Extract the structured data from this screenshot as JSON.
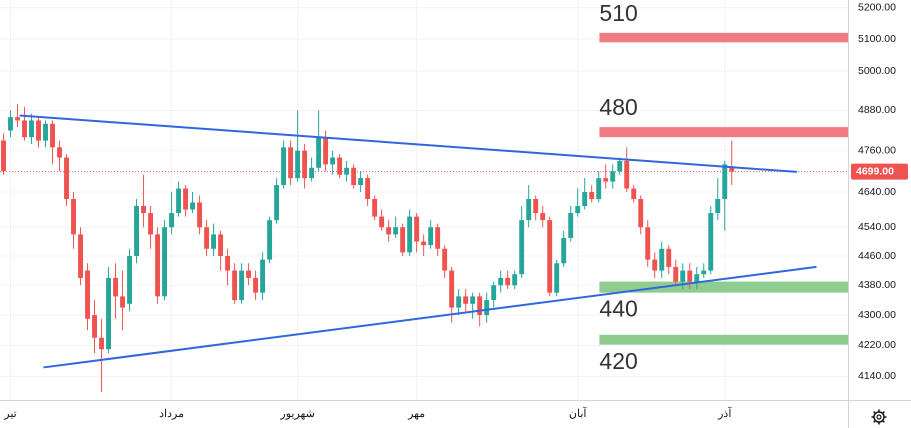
{
  "chart_data": {
    "type": "candlestick",
    "log": true,
    "grid": true,
    "up_color": "#26a69a",
    "down_color": "#ef5350",
    "xlim": [
      -0.5,
      120.6
    ],
    "ylim": [
      4080,
      5225
    ],
    "yticks": [
      {
        "value": 5200,
        "label": "5200.00"
      },
      {
        "value": 5100,
        "label": "5100.00"
      },
      {
        "value": 5000,
        "label": "5000.00"
      },
      {
        "value": 4880,
        "label": "4880.00"
      },
      {
        "value": 4760,
        "label": "4760.00"
      },
      {
        "value": 4640,
        "label": "4640.00"
      },
      {
        "value": 4540,
        "label": "4540.00"
      },
      {
        "value": 4460,
        "label": "4460.00"
      },
      {
        "value": 4380,
        "label": "4380.00"
      },
      {
        "value": 4300,
        "label": "4300.00"
      },
      {
        "value": 4220,
        "label": "4220.00"
      },
      {
        "value": 4140,
        "label": "4140.00"
      }
    ],
    "categories": [
      null,
      "تیر",
      null,
      null,
      null,
      null,
      null,
      null,
      null,
      null,
      null,
      null,
      null,
      null,
      null,
      null,
      null,
      null,
      null,
      null,
      null,
      null,
      null,
      null,
      "مرداد",
      null,
      null,
      null,
      null,
      null,
      null,
      null,
      null,
      null,
      null,
      null,
      null,
      null,
      null,
      null,
      null,
      null,
      "شهریور",
      null,
      null,
      null,
      null,
      null,
      null,
      null,
      null,
      null,
      null,
      null,
      null,
      null,
      null,
      null,
      null,
      "مهر",
      null,
      null,
      null,
      null,
      null,
      null,
      null,
      null,
      null,
      null,
      null,
      null,
      null,
      null,
      null,
      null,
      null,
      null,
      null,
      null,
      null,
      null,
      "آبان",
      null,
      null,
      null,
      null,
      null,
      null,
      null,
      null,
      null,
      null,
      null,
      null,
      null,
      null,
      null,
      null,
      null,
      null,
      null,
      null,
      "آذر",
      null
    ],
    "open": [
      4790,
      4820,
      4860,
      4850,
      4800,
      4850,
      4790,
      4840,
      4770,
      4740,
      4620,
      4520,
      4420,
      4300,
      4240,
      4210,
      4400,
      4350,
      4330,
      4460,
      4600,
      4580,
      4520,
      4350,
      4540,
      4580,
      4650,
      4590,
      4610,
      4540,
      4480,
      4520,
      4460,
      4420,
      4340,
      4420,
      4400,
      4360,
      4450,
      4560,
      4660,
      4770,
      4680,
      4760,
      4680,
      4710,
      4800,
      4720,
      4740,
      4690,
      4710,
      4660,
      4680,
      4620,
      4570,
      4540,
      4520,
      4540,
      4470,
      4570,
      4500,
      4490,
      4540,
      4480,
      4420,
      4320,
      4350,
      4330,
      4350,
      4300,
      4340,
      4380,
      4400,
      4380,
      4410,
      4560,
      4620,
      4580,
      4560,
      4360,
      4440,
      4510,
      4580,
      4600,
      4640,
      4620,
      4680,
      4670,
      4700,
      4730,
      4650,
      4620,
      4540,
      4450,
      4420,
      4480,
      4430,
      4390,
      4420,
      4390,
      4410,
      4420,
      4580,
      4620,
      4710
    ],
    "high": [
      4810,
      4880,
      4900,
      4890,
      4870,
      4860,
      4850,
      4850,
      4790,
      4750,
      4640,
      4540,
      4440,
      4340,
      4290,
      4430,
      4440,
      4420,
      4480,
      4620,
      4690,
      4600,
      4540,
      4560,
      4640,
      4670,
      4660,
      4640,
      4630,
      4560,
      4550,
      4530,
      4480,
      4440,
      4440,
      4440,
      4420,
      4470,
      4570,
      4680,
      4790,
      4790,
      4880,
      4780,
      4740,
      4880,
      4820,
      4760,
      4750,
      4730,
      4720,
      4700,
      4690,
      4630,
      4590,
      4560,
      4570,
      4550,
      4590,
      4580,
      4520,
      4560,
      4550,
      4490,
      4430,
      4370,
      4370,
      4360,
      4360,
      4360,
      4390,
      4420,
      4420,
      4420,
      4600,
      4660,
      4630,
      4600,
      4570,
      4450,
      4530,
      4600,
      4650,
      4680,
      4660,
      4700,
      4720,
      4720,
      4740,
      4770,
      4660,
      4630,
      4560,
      4470,
      4500,
      4490,
      4450,
      4440,
      4440,
      4430,
      4440,
      4600,
      4680,
      4730,
      4790
    ],
    "low": [
      4690,
      4800,
      4830,
      4790,
      4780,
      4770,
      4770,
      4720,
      4700,
      4600,
      4480,
      4380,
      4260,
      4200,
      4100,
      4200,
      4290,
      4260,
      4310,
      4440,
      4540,
      4480,
      4330,
      4340,
      4520,
      4570,
      4570,
      4580,
      4520,
      4460,
      4460,
      4420,
      4380,
      4330,
      4330,
      4380,
      4340,
      4340,
      4440,
      4550,
      4650,
      4660,
      4670,
      4650,
      4670,
      4700,
      4700,
      4690,
      4680,
      4670,
      4650,
      4640,
      4600,
      4560,
      4530,
      4500,
      4510,
      4460,
      4460,
      4470,
      4460,
      4480,
      4460,
      4400,
      4280,
      4300,
      4310,
      4290,
      4270,
      4280,
      4320,
      4360,
      4370,
      4370,
      4400,
      4540,
      4560,
      4540,
      4350,
      4350,
      4430,
      4500,
      4570,
      4590,
      4610,
      4610,
      4650,
      4650,
      4690,
      4640,
      4610,
      4520,
      4430,
      4400,
      4400,
      4410,
      4380,
      4370,
      4370,
      4370,
      4400,
      4410,
      4560,
      4530,
      4660
    ],
    "close": [
      4700,
      4860,
      4850,
      4800,
      4850,
      4790,
      4840,
      4770,
      4740,
      4620,
      4520,
      4400,
      4290,
      4240,
      4210,
      4400,
      4350,
      4320,
      4460,
      4600,
      4580,
      4520,
      4350,
      4540,
      4580,
      4650,
      4590,
      4610,
      4540,
      4480,
      4520,
      4460,
      4420,
      4340,
      4420,
      4400,
      4360,
      4450,
      4560,
      4660,
      4770,
      4680,
      4760,
      4680,
      4710,
      4800,
      4720,
      4740,
      4690,
      4710,
      4660,
      4680,
      4620,
      4570,
      4540,
      4520,
      4540,
      4470,
      4570,
      4500,
      4490,
      4540,
      4480,
      4420,
      4320,
      4350,
      4330,
      4350,
      4300,
      4340,
      4380,
      4400,
      4380,
      4410,
      4560,
      4620,
      4580,
      4560,
      4360,
      4440,
      4510,
      4580,
      4600,
      4640,
      4620,
      4680,
      4670,
      4700,
      4730,
      4650,
      4620,
      4540,
      4450,
      4420,
      4480,
      4430,
      4390,
      4420,
      4390,
      4410,
      4420,
      4580,
      4620,
      4720,
      4699
    ],
    "trend_lines": [
      {
        "x": [
          2.3,
          113.3
        ],
        "y": [
          4865,
          4698
        ],
        "color": "#3366dd"
      },
      {
        "x": [
          5.7,
          116.1
        ],
        "y": [
          4163,
          4430
        ],
        "color": "#3366dd"
      }
    ],
    "zones": [
      {
        "label": "510",
        "range": [
          5090,
          5120
        ],
        "color": "#f07b82",
        "label_side": "above",
        "x_start": 85.1
      },
      {
        "label": "480",
        "range": [
          4800,
          4830
        ],
        "color": "#f07b82",
        "label_side": "above",
        "x_start": 85.1
      },
      {
        "label": "440",
        "range": [
          4360,
          4390
        ],
        "color": "#8fcc8f",
        "label_side": "below",
        "x_start": 85.1
      },
      {
        "label": "420",
        "range": [
          4222,
          4248
        ],
        "color": "#8fcc8f",
        "label_side": "below",
        "x_start": 85.1
      }
    ],
    "last_price": {
      "value": 4699,
      "label": "4699.00",
      "color": "#ef5350"
    }
  }
}
